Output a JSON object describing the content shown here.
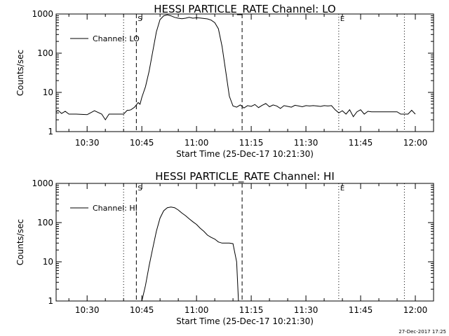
{
  "timestamp": "27-Dec-2017 17:25",
  "chart_data": [
    {
      "type": "line",
      "title": "HESSI PARTICLE_RATE Channel: LO",
      "xlabel": "Start Time (25-Dec-17 10:21:30)",
      "ylabel": "Counts/sec",
      "yscale": "log",
      "xlim": [
        "10:21:30",
        "12:05"
      ],
      "ylim": [
        1,
        1000
      ],
      "xticks": [
        "10:30",
        "10:45",
        "11:00",
        "11:15",
        "11:30",
        "11:45",
        "12:00"
      ],
      "yticks": [
        "1",
        "10",
        "100",
        "1000"
      ],
      "legend": "top-left",
      "grid": false,
      "series": [
        {
          "name": "Channel: LO",
          "x": [
            "10:21:30",
            "10:22",
            "10:23",
            "10:24",
            "10:25",
            "10:27",
            "10:30",
            "10:32",
            "10:34",
            "10:35",
            "10:36",
            "10:38",
            "10:40",
            "10:41",
            "10:41:30",
            "10:42",
            "10:43",
            "10:44",
            "10:44:30",
            "10:45",
            "10:46",
            "10:47",
            "10:48",
            "10:49",
            "10:50",
            "10:51",
            "10:52",
            "10:53",
            "10:54",
            "10:55",
            "10:56",
            "10:57",
            "10:58",
            "10:59",
            "11:00",
            "11:01",
            "11:02",
            "11:03",
            "11:04",
            "11:05",
            "11:06",
            "11:07",
            "11:08",
            "11:09",
            "11:10",
            "11:11",
            "11:12",
            "11:13",
            "11:14",
            "11:15",
            "11:16",
            "11:17",
            "11:18",
            "11:19",
            "11:20",
            "11:21",
            "11:22",
            "11:23",
            "11:24",
            "11:25",
            "11:26",
            "11:27",
            "11:28",
            "11:29",
            "11:30",
            "11:31",
            "11:32",
            "11:33",
            "11:34",
            "11:35",
            "11:36",
            "11:37",
            "11:38",
            "11:39",
            "11:40",
            "11:41",
            "11:42",
            "11:43",
            "11:44",
            "11:45",
            "11:46",
            "11:47",
            "11:48",
            "11:49",
            "11:50",
            "11:51",
            "11:52",
            "11:53",
            "11:54",
            "11:55",
            "11:56",
            "11:57",
            "11:58",
            "11:59",
            "12:00"
          ],
          "y": [
            3.2,
            3.5,
            2.9,
            3.3,
            2.8,
            2.8,
            2.7,
            3.4,
            2.8,
            2.0,
            2.8,
            2.8,
            2.8,
            3.5,
            3.5,
            3.6,
            4.2,
            5.5,
            5.0,
            7.5,
            14,
            35,
            110,
            350,
            720,
            900,
            950,
            900,
            820,
            780,
            760,
            780,
            820,
            780,
            800,
            790,
            770,
            750,
            700,
            600,
            420,
            150,
            35,
            8,
            4.5,
            4.2,
            4.8,
            4.0,
            4.6,
            4.4,
            4.9,
            4.1,
            4.7,
            5.2,
            4.3,
            4.8,
            4.5,
            3.9,
            4.6,
            4.4,
            4.2,
            4.7,
            4.5,
            4.3,
            4.6,
            4.5,
            4.6,
            4.5,
            4.4,
            4.6,
            4.5,
            4.6,
            3.6,
            3.0,
            3.4,
            2.8,
            3.6,
            2.4,
            3.2,
            3.6,
            2.8,
            3.3,
            3.2,
            3.2,
            3.2,
            3.2,
            3.2,
            3.2,
            3.2,
            3.2,
            2.8,
            2.8,
            2.8,
            3.5,
            2.8
          ]
        }
      ],
      "vlines": [
        {
          "x": "10:40",
          "style": "dotted",
          "label": ""
        },
        {
          "x": "10:43:30",
          "style": "dashed",
          "label": "S"
        },
        {
          "x": "11:12:30",
          "style": "dashed",
          "label": ""
        },
        {
          "x": "11:39",
          "style": "dotted",
          "label": "E"
        },
        {
          "x": "11:57",
          "style": "dotted",
          "label": ""
        }
      ]
    },
    {
      "type": "line",
      "title": "HESSI PARTICLE_RATE Channel: HI",
      "xlabel": "Start Time (25-Dec-17 10:21:30)",
      "ylabel": "Counts/sec",
      "yscale": "log",
      "xlim": [
        "10:21:30",
        "12:05"
      ],
      "ylim": [
        1,
        1000
      ],
      "xticks": [
        "10:30",
        "10:45",
        "11:00",
        "11:15",
        "11:30",
        "11:45",
        "12:00"
      ],
      "yticks": [
        "1",
        "10",
        "100",
        "1000"
      ],
      "legend": "top-left",
      "grid": false,
      "series": [
        {
          "name": "Channel: HI",
          "x": [
            "10:45",
            "10:46",
            "10:47",
            "10:48",
            "10:49",
            "10:50",
            "10:51",
            "10:52",
            "10:53",
            "10:54",
            "10:55",
            "10:56",
            "10:57",
            "10:58",
            "10:59",
            "11:00",
            "11:01",
            "11:02",
            "11:03",
            "11:04",
            "11:05",
            "11:06",
            "11:07",
            "11:08",
            "11:09",
            "11:10",
            "11:11",
            "11:11:30"
          ],
          "y": [
            1.0,
            2.5,
            8,
            22,
            60,
            130,
            200,
            240,
            250,
            240,
            210,
            175,
            150,
            125,
            105,
            90,
            72,
            60,
            48,
            42,
            38,
            32,
            30,
            30,
            30,
            29,
            10,
            1.0
          ]
        }
      ],
      "vlines": [
        {
          "x": "10:40",
          "style": "dotted",
          "label": ""
        },
        {
          "x": "10:43:30",
          "style": "dashed",
          "label": "S"
        },
        {
          "x": "11:12:30",
          "style": "dashed",
          "label": ""
        },
        {
          "x": "11:39",
          "style": "dotted",
          "label": "E"
        },
        {
          "x": "11:57",
          "style": "dotted",
          "label": ""
        }
      ]
    }
  ]
}
